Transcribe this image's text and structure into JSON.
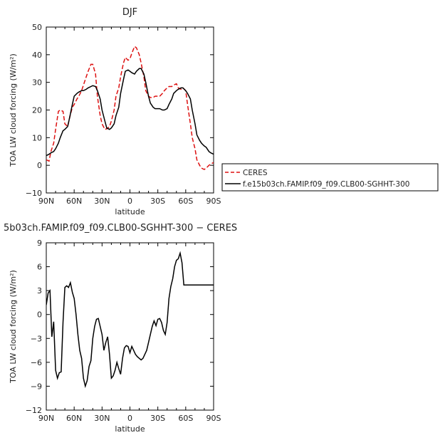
{
  "chart_data": [
    {
      "type": "line",
      "title": "DJF",
      "xlabel": "latitude",
      "ylabel": "TOA LW cloud forcing (W/m²)",
      "xlim": [
        -90,
        90
      ],
      "ylim": [
        -10,
        50
      ],
      "x_tick_values": [
        -90,
        -60,
        -30,
        0,
        30,
        60,
        90
      ],
      "x_tick_labels": [
        "90N",
        "60N",
        "30N",
        "0",
        "30S",
        "60S",
        "90S"
      ],
      "y_tick_values": [
        -10,
        0,
        10,
        20,
        30,
        40,
        50
      ],
      "y_tick_labels": [
        "−10",
        "0",
        "10",
        "20",
        "30",
        "40",
        "50"
      ],
      "legend_position": "right",
      "series": [
        {
          "name": "CERES",
          "color": "#dd1111",
          "dash": "dashed",
          "x": [
            -90,
            -87,
            -85,
            -82,
            -80,
            -77,
            -75,
            -72,
            -70,
            -67,
            -65,
            -62,
            -60,
            -57,
            -55,
            -52,
            -50,
            -47,
            -45,
            -42,
            -40,
            -37,
            -35,
            -32,
            -30,
            -27,
            -25,
            -22,
            -20,
            -17,
            -15,
            -12,
            -10,
            -7,
            -5,
            -2,
            0,
            2,
            5,
            7,
            10,
            12,
            15,
            17,
            20,
            22,
            25,
            27,
            30,
            32,
            35,
            37,
            40,
            42,
            45,
            47,
            50,
            52,
            55,
            57,
            60,
            62,
            65,
            67,
            70,
            72,
            75,
            77,
            80,
            82,
            85,
            87,
            90
          ],
          "y": [
            2.0,
            1.5,
            5.0,
            8.0,
            13.0,
            19.5,
            20.0,
            19.5,
            15.0,
            14.0,
            17.0,
            21.0,
            22.0,
            24.0,
            25.0,
            27.0,
            29.0,
            32.0,
            34.0,
            36.5,
            36.5,
            33.0,
            25.0,
            18.0,
            15.0,
            13.0,
            13.2,
            14.0,
            16.0,
            20.0,
            25.0,
            28.0,
            32.0,
            37.0,
            39.0,
            38.0,
            38.5,
            40.5,
            43.0,
            42.5,
            40.0,
            37.0,
            32.0,
            27.0,
            25.0,
            24.5,
            24.5,
            25.0,
            25.0,
            25.0,
            26.0,
            27.0,
            28.0,
            28.5,
            28.5,
            29.0,
            29.5,
            28.0,
            27.5,
            28.0,
            27.0,
            22.0,
            15.0,
            10.0,
            6.0,
            2.0,
            0.0,
            -1.0,
            -1.5,
            -1.0,
            0.0,
            0.5,
            1.0
          ]
        },
        {
          "name": "f.e15b03ch.FAMIP.f09_f09.CLB00-SGHHT-300",
          "color": "#000000",
          "dash": "solid",
          "x": [
            -90,
            -87,
            -85,
            -82,
            -80,
            -77,
            -75,
            -72,
            -70,
            -67,
            -65,
            -62,
            -60,
            -57,
            -55,
            -52,
            -50,
            -47,
            -45,
            -42,
            -40,
            -37,
            -35,
            -32,
            -30,
            -27,
            -25,
            -22,
            -20,
            -17,
            -15,
            -12,
            -10,
            -7,
            -5,
            -2,
            0,
            2,
            5,
            7,
            10,
            12,
            15,
            17,
            20,
            22,
            25,
            27,
            30,
            32,
            35,
            37,
            40,
            42,
            45,
            47,
            50,
            52,
            55,
            57,
            60,
            62,
            65,
            67,
            70,
            72,
            75,
            77,
            80,
            82,
            85,
            87,
            90
          ],
          "y": [
            3.5,
            4.0,
            4.5,
            5.0,
            6.0,
            8.0,
            10.0,
            12.5,
            13.0,
            14.0,
            17.0,
            22.0,
            25.0,
            26.0,
            26.5,
            27.0,
            27.0,
            27.5,
            28.0,
            28.5,
            28.8,
            28.5,
            27.0,
            24.0,
            20.0,
            16.0,
            13.5,
            13.0,
            13.5,
            15.0,
            18.0,
            21.0,
            26.0,
            31.0,
            34.0,
            34.5,
            34.0,
            33.5,
            33.0,
            34.0,
            35.0,
            35.0,
            33.0,
            30.0,
            25.0,
            22.5,
            21.0,
            20.5,
            20.5,
            20.5,
            20.0,
            20.0,
            20.5,
            22.0,
            24.0,
            26.0,
            27.0,
            27.5,
            28.0,
            28.0,
            27.0,
            26.0,
            24.0,
            20.0,
            15.0,
            11.0,
            9.0,
            8.0,
            7.0,
            6.5,
            5.0,
            4.5,
            4.0
          ]
        }
      ]
    },
    {
      "type": "line",
      "title": "5b03ch.FAMIP.f09_f09.CLB00-SGHHT-300 − CERES",
      "xlabel": "latitude",
      "ylabel": "TOA LW cloud forcing (W/m²)",
      "xlim": [
        -90,
        90
      ],
      "ylim": [
        -12,
        9
      ],
      "x_tick_values": [
        -90,
        -60,
        -30,
        0,
        30,
        60,
        90
      ],
      "x_tick_labels": [
        "90N",
        "60N",
        "30N",
        "0",
        "30S",
        "60S",
        "90S"
      ],
      "y_tick_values": [
        -12,
        -9,
        -6,
        -3,
        0,
        3,
        6,
        9
      ],
      "y_tick_labels": [
        "−12",
        "−9",
        "−6",
        "−3",
        "0",
        "3",
        "6",
        "9"
      ],
      "series": [
        {
          "name": "",
          "color": "#000000",
          "dash": "solid",
          "x": [
            -90,
            -88,
            -86,
            -84,
            -82,
            -80,
            -78,
            -76,
            -74,
            -72,
            -70,
            -68,
            -66,
            -64,
            -62,
            -60,
            -58,
            -56,
            -54,
            -52,
            -50,
            -48,
            -46,
            -44,
            -42,
            -40,
            -38,
            -36,
            -34,
            -32,
            -30,
            -28,
            -26,
            -24,
            -22,
            -20,
            -18,
            -16,
            -14,
            -12,
            -10,
            -8,
            -6,
            -4,
            -2,
            0,
            2,
            4,
            6,
            8,
            10,
            12,
            14,
            16,
            18,
            20,
            22,
            24,
            26,
            28,
            30,
            32,
            34,
            36,
            38,
            40,
            42,
            44,
            46,
            48,
            50,
            52,
            54,
            56,
            58,
            60,
            62,
            64,
            66,
            68,
            70,
            72,
            74,
            76,
            78,
            80,
            82,
            84,
            86,
            88,
            90
          ],
          "y": [
            1.2,
            2.7,
            3.0,
            -2.8,
            -0.9,
            -7.0,
            -8.0,
            -7.3,
            -7.2,
            -1.0,
            3.4,
            3.6,
            3.4,
            4.0,
            2.8,
            2.0,
            0.0,
            -2.5,
            -4.5,
            -5.5,
            -8.0,
            -9.0,
            -8.3,
            -6.5,
            -5.8,
            -3.0,
            -1.5,
            -0.6,
            -0.5,
            -1.5,
            -2.5,
            -4.5,
            -3.5,
            -2.8,
            -5.0,
            -8.0,
            -7.7,
            -7.0,
            -6.0,
            -6.8,
            -7.5,
            -5.5,
            -4.2,
            -3.9,
            -4.0,
            -4.8,
            -4.0,
            -4.5,
            -5.0,
            -5.3,
            -5.5,
            -5.7,
            -5.5,
            -5.0,
            -4.5,
            -3.5,
            -2.5,
            -1.5,
            -0.8,
            -1.4,
            -0.6,
            -0.5,
            -1.0,
            -2.0,
            -2.5,
            -1.0,
            2.0,
            3.5,
            4.5,
            6.0,
            6.8,
            7.0,
            7.7,
            6.5,
            3.7,
            3.7,
            3.7,
            3.7,
            3.7,
            3.7,
            3.7,
            3.7,
            3.7,
            3.7,
            3.7,
            3.7,
            3.7,
            3.7,
            3.7,
            3.7,
            3.7
          ]
        }
      ]
    }
  ]
}
